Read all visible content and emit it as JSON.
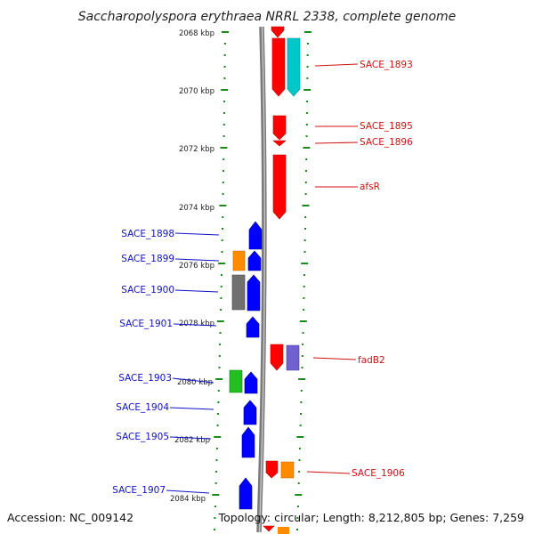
{
  "title": "Saccharopolyspora erythraea NRRL 2338, complete genome",
  "footer": {
    "accession": "Accession: NC_009142",
    "topology": "Topology: circular; Length: 8,212,805 bp; Genes: 7,259"
  },
  "kbp_labels": [
    "2068 kbp",
    "2070 kbp",
    "2072 kbp",
    "2074 kbp",
    "2076 kbp",
    "2078 kbp",
    "2080 kbp",
    "2082 kbp",
    "2084 kbp"
  ],
  "genes_right": [
    "SACE_1893",
    "SACE_1895",
    "SACE_1896",
    "afsR",
    "fadB2",
    "SACE_1906"
  ],
  "genes_left": [
    "SACE_1898",
    "SACE_1899",
    "SACE_1900",
    "SACE_1901",
    "SACE_1903",
    "SACE_1904",
    "SACE_1905",
    "SACE_1907"
  ],
  "colors": {
    "red": "#ff0000",
    "blue": "#0000ff",
    "cyan": "#00c8c8",
    "orange": "#ff8c00",
    "gray": "#707070",
    "green": "#20c020",
    "purple": "#7060d0",
    "tick": "#1a8a1a",
    "backbone": "#909090"
  }
}
